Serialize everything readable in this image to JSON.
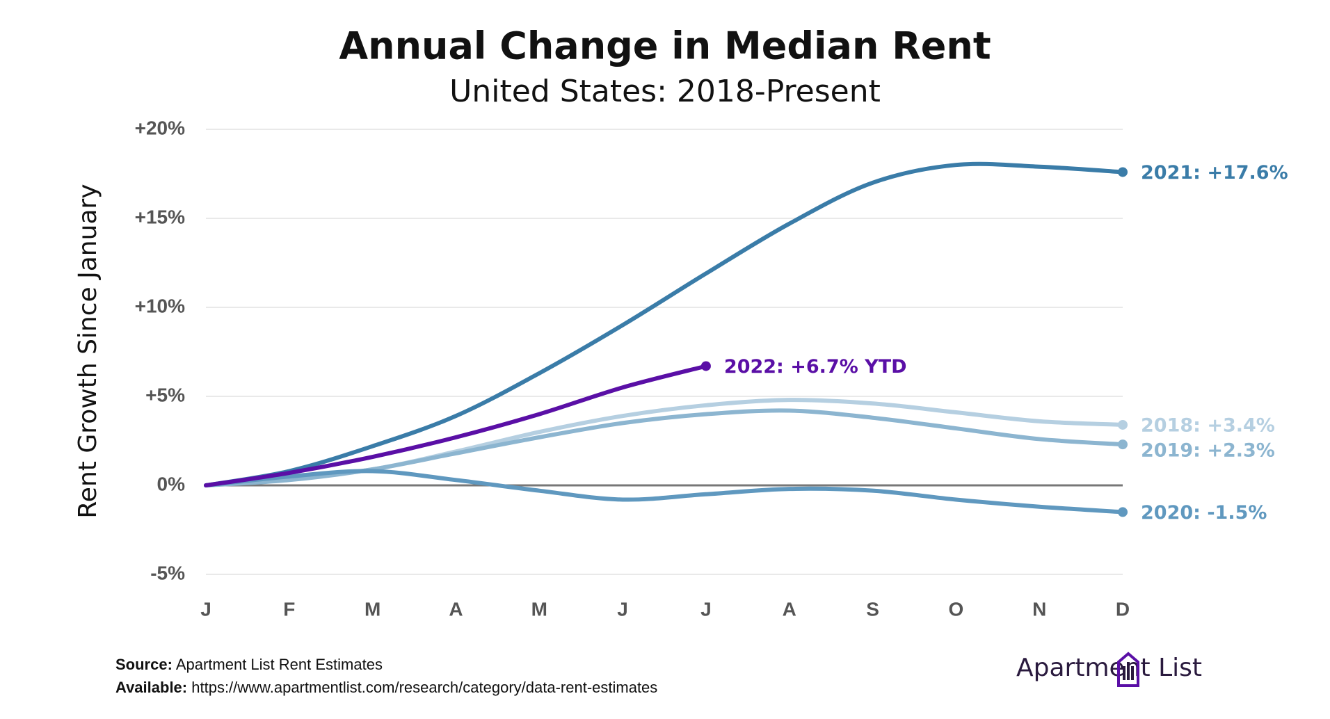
{
  "chart_data": {
    "type": "line",
    "title": "Annual Change in Median Rent",
    "subtitle": "United States: 2018-Present",
    "y_label": "Rent Growth Since January",
    "categories": [
      "J",
      "F",
      "M",
      "A",
      "M",
      "J",
      "J",
      "A",
      "S",
      "O",
      "N",
      "D"
    ],
    "ylim": [
      -5,
      20
    ],
    "yticks": [
      {
        "value": -5,
        "label": "-5%"
      },
      {
        "value": 0,
        "label": "0%"
      },
      {
        "value": 5,
        "label": "+5%"
      },
      {
        "value": 10,
        "label": "+10%"
      },
      {
        "value": 15,
        "label": "+15%"
      },
      {
        "value": 20,
        "label": "+20%"
      }
    ],
    "grid": true,
    "series": [
      {
        "label": "2018: +3.4%",
        "color": "#b5cfe1",
        "values": [
          0,
          0.4,
          0.9,
          1.9,
          3.0,
          3.9,
          4.5,
          4.8,
          4.6,
          4.1,
          3.6,
          3.4
        ]
      },
      {
        "label": "2019: +2.3%",
        "color": "#8cb5d0",
        "values": [
          0,
          0.3,
          0.9,
          1.8,
          2.7,
          3.5,
          4.0,
          4.2,
          3.8,
          3.2,
          2.6,
          2.3
        ]
      },
      {
        "label": "2020: -1.5%",
        "color": "#5f98bf",
        "values": [
          0,
          0.5,
          0.8,
          0.3,
          -0.3,
          -0.8,
          -0.5,
          -0.2,
          -0.3,
          -0.8,
          -1.2,
          -1.5
        ]
      },
      {
        "label": "2021: +17.6%",
        "color": "#3a7ca8",
        "values": [
          0,
          0.8,
          2.2,
          3.9,
          6.3,
          9.0,
          11.9,
          14.7,
          17.0,
          18.0,
          17.9,
          17.6
        ]
      },
      {
        "label": "2022: +6.7% YTD",
        "color": "#5a0fa6",
        "values": [
          0,
          0.7,
          1.6,
          2.7,
          4.0,
          5.5,
          6.7,
          null,
          null,
          null,
          null,
          null
        ]
      }
    ]
  },
  "footer": {
    "source_label": "Source:",
    "source": "Apartment List Rent Estimates",
    "available_label": "Available:",
    "available": "https://www.apartmentlist.com/research/category/data-rent-estimates",
    "logo": "Apartment List"
  }
}
